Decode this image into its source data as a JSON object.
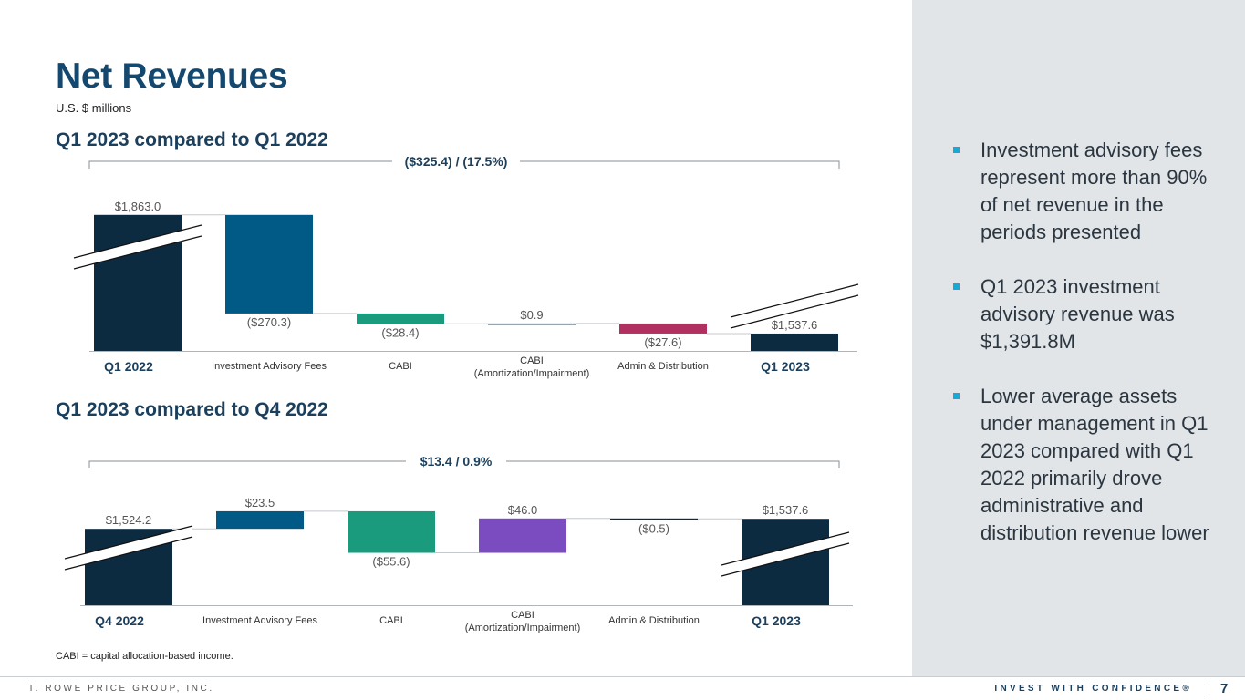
{
  "title": "Net Revenues",
  "subtitle": "U.S. $ millions",
  "footnote": "CABI = capital allocation-based income.",
  "footer": {
    "company": "T. ROWE PRICE GROUP, INC.",
    "tagline": "INVEST WITH CONFIDENCE®",
    "page": "7"
  },
  "colors": {
    "navy": "#0c2a40",
    "blue": "#005a85",
    "green": "#1a9b7e",
    "magenta": "#b03060",
    "purple": "#7b4cc0",
    "bullet": "#17a8d8"
  },
  "sidebar": {
    "bullets": [
      "Investment advisory fees represent more than 90% of net revenue in the periods presented",
      "Q1 2023 investment advisory revenue was $1,391.8M",
      "Lower average assets under management in Q1 2023 compared with Q1 2022 primarily drove administrative and distribution revenue lower"
    ]
  },
  "chart_data": [
    {
      "type": "bar",
      "title": "Q1 2023 compared to Q1 2022",
      "bracket_label": "($325.4) / (17.5%)",
      "categories": [
        "Q1 2022",
        "Investment Advisory Fees",
        "CABI",
        "CABI (Amortization/Impairment)",
        "Admin & Distribution",
        "Q1 2023"
      ],
      "values": [
        1863.0,
        -270.3,
        -28.4,
        0.9,
        -27.6,
        1537.6
      ],
      "value_labels": [
        "$1,863.0",
        "($270.3)",
        "($28.4)",
        "$0.9",
        "($27.6)",
        "$1,537.6"
      ],
      "kinds": [
        "total",
        "delta",
        "delta",
        "delta",
        "delta",
        "total"
      ],
      "bar_colors": [
        "navy",
        "blue",
        "green",
        "navy",
        "magenta",
        "navy"
      ]
    },
    {
      "type": "bar",
      "title": "Q1 2023 compared to Q4 2022",
      "bracket_label": "$13.4 / 0.9%",
      "categories": [
        "Q4 2022",
        "Investment Advisory Fees",
        "CABI",
        "CABI (Amortization/Impairment)",
        "Admin & Distribution",
        "Q1 2023"
      ],
      "values": [
        1524.2,
        23.5,
        -55.6,
        46.0,
        -0.5,
        1537.6
      ],
      "value_labels": [
        "$1,524.2",
        "$23.5",
        "($55.6)",
        "$46.0",
        "($0.5)",
        "$1,537.6"
      ],
      "kinds": [
        "total",
        "delta",
        "delta",
        "delta",
        "delta",
        "total"
      ],
      "bar_colors": [
        "navy",
        "blue",
        "green",
        "purple",
        "navy",
        "navy"
      ]
    }
  ]
}
